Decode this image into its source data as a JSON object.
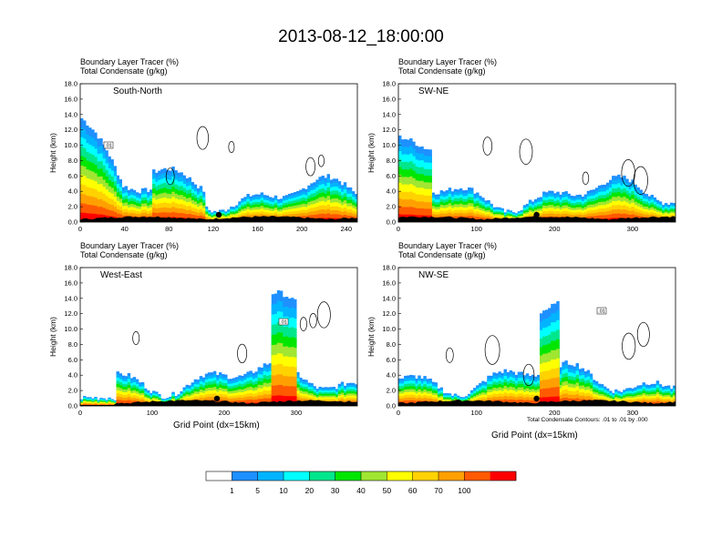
{
  "title": "2013-08-12_18:00:00",
  "panel_header_line1": "Boundary Layer Tracer   (%)",
  "panel_header_line2": "Total Condensate   (g/kg)",
  "x_axis_label": "Grid Point (dx=15km)",
  "contour_note": "Total Condensate Contours: .01 to .01 by .000",
  "colors": {
    "palette": [
      "#ffffff",
      "#1e90ff",
      "#00b4ff",
      "#00ffff",
      "#00e68c",
      "#00e600",
      "#a0e632",
      "#ffff00",
      "#ffd200",
      "#ffa000",
      "#ff5a00",
      "#ff0000"
    ]
  },
  "chart_data": [
    {
      "type": "heatmap",
      "name_label": "South-North",
      "ylabel": "Height (km)",
      "ylim": [
        0,
        18
      ],
      "yticks": [
        "0.0",
        "2.0",
        "4.0",
        "6.0",
        "8.0",
        "10.0",
        "12.0",
        "14.0",
        "16.0",
        "18.0"
      ],
      "xlim": [
        0,
        250
      ],
      "xticks": [
        0,
        40,
        80,
        120,
        160,
        200,
        240
      ],
      "contour_label": ".01",
      "marker_x": 125
    },
    {
      "type": "heatmap",
      "name_label": "SW-NE",
      "ylabel": "Height (km)",
      "ylim": [
        0,
        18
      ],
      "yticks": [
        "0.0",
        "2.0",
        "4.0",
        "6.0",
        "8.0",
        "10.0",
        "12.0",
        "14.0",
        "16.0",
        "18.0"
      ],
      "xlim": [
        0,
        355
      ],
      "xticks": [
        0,
        100,
        200,
        300
      ],
      "contour_label": "",
      "marker_x": 177
    },
    {
      "type": "heatmap",
      "name_label": "West-East",
      "ylabel": "Height (km)",
      "ylim": [
        0,
        18
      ],
      "yticks": [
        "0.0",
        "2.0",
        "4.0",
        "6.0",
        "8.0",
        "10.0",
        "12.0",
        "14.0",
        "16.0",
        "18.0"
      ],
      "xlim": [
        0,
        385
      ],
      "xticks": [
        0,
        100,
        200,
        300
      ],
      "contour_label": ".01",
      "marker_x": 190
    },
    {
      "type": "heatmap",
      "name_label": "NW-SE",
      "ylabel": "Height (km)",
      "ylim": [
        0,
        18
      ],
      "yticks": [
        "0.0",
        "2.0",
        "4.0",
        "6.0",
        "8.0",
        "10.0",
        "12.0",
        "14.0",
        "16.0",
        "18.0"
      ],
      "xlim": [
        0,
        355
      ],
      "xticks": [
        0,
        100,
        200,
        300
      ],
      "contour_label": ".01",
      "marker_x": 177
    }
  ],
  "colorbar": {
    "labels": [
      "1",
      "5",
      "10",
      "20",
      "30",
      "40",
      "50",
      "60",
      "70",
      "100"
    ]
  }
}
